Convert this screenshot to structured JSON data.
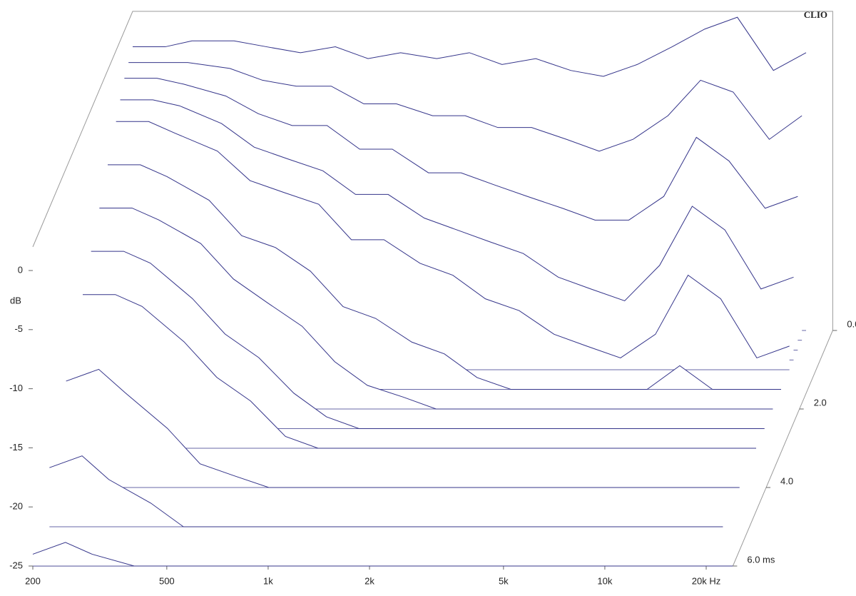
{
  "chart_data": {
    "type": "waterfall",
    "brand": "CLIO",
    "ylabel": "dB",
    "color": "#34348a",
    "xscale": "log",
    "xlim": [
      200,
      24000
    ],
    "ylim": [
      -25,
      2
    ],
    "zlim": [
      0,
      6
    ],
    "xticks": [
      {
        "value": 200,
        "label": "200"
      },
      {
        "value": 500,
        "label": "500"
      },
      {
        "value": 1000,
        "label": "1k"
      },
      {
        "value": 2000,
        "label": "2k"
      },
      {
        "value": 5000,
        "label": "5k"
      },
      {
        "value": 10000,
        "label": "10k"
      },
      {
        "value": 20000,
        "label": "20k Hz"
      }
    ],
    "yticks": [
      0,
      -5,
      -10,
      -15,
      -20,
      -25
    ],
    "zticks": [
      {
        "value": 0,
        "label": "0.0"
      },
      {
        "value": 2,
        "label": "2.0"
      },
      {
        "value": 4,
        "label": "4.0"
      },
      {
        "value": 6,
        "label": "6.0 ms"
      }
    ],
    "x": [
      200,
      250,
      300,
      400,
      500,
      630,
      800,
      1000,
      1250,
      1600,
      2000,
      2500,
      3150,
      4000,
      5000,
      6300,
      8000,
      10000,
      12500,
      16000,
      20000
    ],
    "slices": [
      {
        "time": 0,
        "values": [
          -1,
          -1,
          -0.5,
          -0.5,
          -1,
          -1.5,
          -1,
          -2,
          -1.5,
          -2,
          -1.5,
          -2.5,
          -2,
          -3,
          -3.5,
          -2.5,
          -1,
          0.5,
          1.5,
          -3,
          -1.5
        ]
      },
      {
        "time": 0.25,
        "values": [
          -1.5,
          -1.5,
          -1.5,
          -2,
          -3,
          -3.5,
          -3.5,
          -5,
          -5,
          -6,
          -6,
          -7,
          -7,
          -8,
          -9,
          -8,
          -6,
          -3,
          -4,
          -8,
          -6
        ]
      },
      {
        "time": 0.5,
        "values": [
          -2,
          -2,
          -2.5,
          -3.5,
          -5,
          -6,
          -6,
          -8,
          -8,
          -10,
          -10,
          -11,
          -12,
          -13,
          -14,
          -14,
          -12,
          -7,
          -9,
          -13,
          -12
        ]
      },
      {
        "time": 0.75,
        "values": [
          -3,
          -3,
          -3.5,
          -5,
          -7,
          -8,
          -9,
          -11,
          -11,
          -13,
          -14,
          -15,
          -16,
          -18,
          -19,
          -20,
          -17,
          -12,
          -14,
          -19,
          -18
        ]
      },
      {
        "time": 1,
        "values": [
          -4,
          -4,
          -5,
          -6.5,
          -9,
          -10,
          -11,
          -14,
          -14,
          -16,
          -17,
          -19,
          -20,
          -22,
          -23,
          -24,
          -22,
          -17,
          -19,
          -24,
          -23
        ]
      },
      {
        "time": 1.5,
        "values": [
          -6,
          -6,
          -7,
          -9,
          -12,
          -13,
          -15,
          -18,
          -19,
          -21,
          -22,
          -24,
          -25,
          -25,
          -25,
          -25,
          -25,
          -23,
          -25,
          -25,
          -25
        ]
      },
      {
        "time": 2,
        "values": [
          -8,
          -8,
          -9,
          -11,
          -14,
          -16,
          -18,
          -21,
          -23,
          -24,
          -25,
          -25,
          -25,
          -25,
          -25,
          -25,
          -25,
          -25,
          -25,
          -25,
          -25
        ]
      },
      {
        "time": 2.5,
        "values": [
          -10,
          -10,
          -11,
          -14,
          -17,
          -19,
          -22,
          -24,
          -25,
          -25,
          -25,
          -25,
          -25,
          -25,
          -25,
          -25,
          -25,
          -25,
          -25,
          -25,
          -25
        ]
      },
      {
        "time": 3,
        "values": [
          -12,
          -12,
          -13,
          -16,
          -19,
          -21,
          -24,
          -25,
          -25,
          -25,
          -25,
          -25,
          -25,
          -25,
          -25,
          -25,
          -25,
          -25,
          -25,
          -25,
          -25
        ]
      },
      {
        "time": 4,
        "values": [
          -16,
          -15,
          -17,
          -20,
          -23,
          -24,
          -25,
          -25,
          -25,
          -25,
          -25,
          -25,
          -25,
          -25,
          -25,
          -25,
          -25,
          -25,
          -25,
          -25,
          -25
        ]
      },
      {
        "time": 5,
        "values": [
          -20,
          -19,
          -21,
          -23,
          -25,
          -25,
          -25,
          -25,
          -25,
          -25,
          -25,
          -25,
          -25,
          -25,
          -25,
          -25,
          -25,
          -25,
          -25,
          -25,
          -25
        ]
      },
      {
        "time": 6,
        "values": [
          -24,
          -23,
          -24,
          -25,
          -25,
          -25,
          -25,
          -25,
          -25,
          -25,
          -25,
          -25,
          -25,
          -25,
          -25,
          -25,
          -25,
          -25,
          -25,
          -25,
          -25
        ]
      }
    ]
  }
}
